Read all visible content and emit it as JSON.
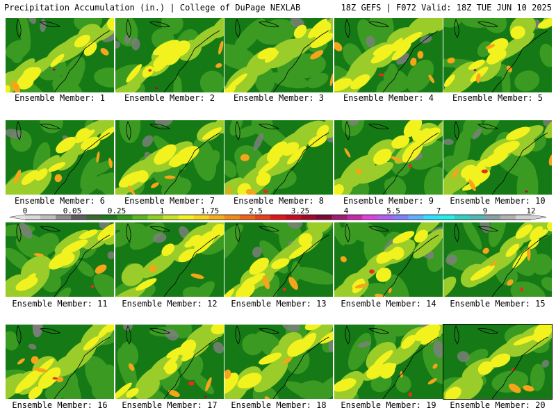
{
  "header": {
    "left": "Precipitation Accumulation (in.) | College of DuPage NEXLAB",
    "right": "18Z GEFS | F072 Valid: 18Z TUE JUN 10 2025"
  },
  "panel_label_prefix": "Ensemble Member: ",
  "members": [
    1,
    2,
    3,
    4,
    5,
    6,
    7,
    8,
    9,
    10,
    11,
    12,
    13,
    14,
    15,
    16,
    17,
    18,
    19,
    20
  ],
  "colorbar": {
    "tick_labels": [
      "0",
      "0.05",
      "0.25",
      "1",
      "1.75",
      "2.5",
      "3.25",
      "4",
      "5.5",
      "7",
      "9",
      "12"
    ],
    "colors": [
      "#d9d9d9",
      "#bdbdbd",
      "#8c8c8c",
      "#5e5e5e",
      "#3a6b2e",
      "#1e7a1e",
      "#2f9a1a",
      "#56b81c",
      "#8fcf22",
      "#c8e224",
      "#f2f21e",
      "#f7d41b",
      "#f5ae1a",
      "#f38a18",
      "#ef6317",
      "#e8401a",
      "#e3141a",
      "#c80b22",
      "#a00a2a",
      "#7d0a34",
      "#a01e6e",
      "#c828a8",
      "#e040e0",
      "#b060f0",
      "#8080ff",
      "#60b0ff",
      "#30e0ff",
      "#20f0f0",
      "#30d0c0",
      "#50b8b0",
      "#8aa0a0",
      "#b0b0b0",
      "#d0d0d0"
    ]
  },
  "legend_colors": {
    "ocean": "#157a15",
    "low": "#3a9a22",
    "mid": "#9acc2a",
    "high": "#f2f21e",
    "heavy": "#f5a51a",
    "very_heavy": "#e33018",
    "extreme": "#b00a30",
    "dry": "#808080"
  }
}
